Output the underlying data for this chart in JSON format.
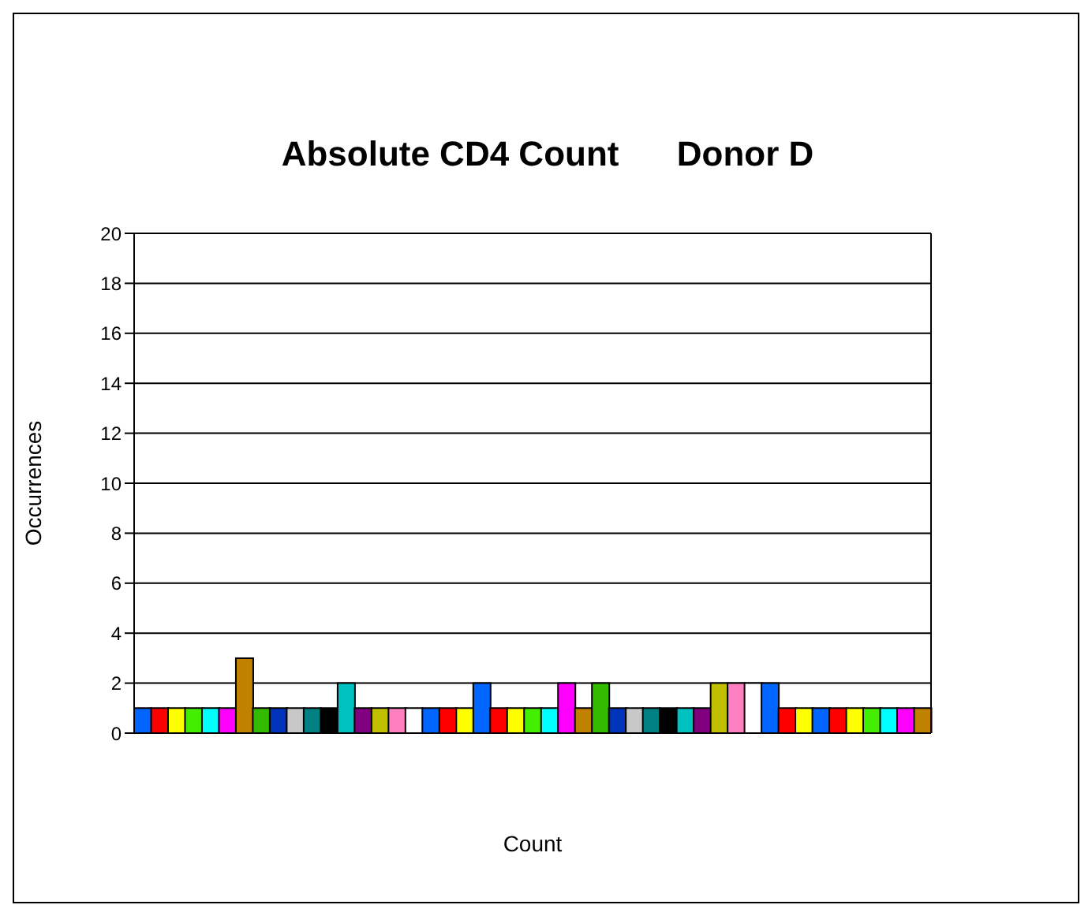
{
  "chart_data": {
    "type": "bar",
    "title": "Absolute CD4 Count      Donor D",
    "xlabel": "Count",
    "ylabel": "Occurrences",
    "categories": [
      null,
      null,
      null,
      null,
      null,
      null,
      null,
      null,
      null,
      null,
      null,
      null,
      null,
      null,
      null,
      null,
      null,
      null,
      null,
      null,
      null,
      null,
      null,
      null,
      null,
      null,
      null,
      null,
      null,
      null,
      null,
      null,
      null,
      null,
      null,
      null,
      null,
      null,
      null,
      null,
      null,
      null,
      null,
      null,
      null,
      null,
      null
    ],
    "values": [
      1,
      1,
      1,
      1,
      1,
      1,
      3,
      1,
      1,
      1,
      1,
      1,
      2,
      1,
      1,
      1,
      1,
      1,
      1,
      1,
      2,
      1,
      1,
      1,
      1,
      2,
      1,
      2,
      1,
      1,
      1,
      1,
      1,
      1,
      2,
      2,
      2,
      2,
      1,
      1,
      1,
      1,
      1,
      1,
      1,
      1,
      1
    ],
    "colors": [
      "#0066ff",
      "#ff0000",
      "#ffff00",
      "#44ee00",
      "#00ffff",
      "#ff00ff",
      "#c08000",
      "#33bb00",
      "#0033bb",
      "#c8c8c8",
      "#008080",
      "#000000",
      "#00c0c0",
      "#800080",
      "#c0c000",
      "#ff80c0",
      "#ffffff",
      "#0066ff",
      "#ff0000",
      "#ffff00",
      "#0066ff",
      "#ff0000",
      "#ffff00",
      "#44ee00",
      "#00ffff",
      "#ff00ff",
      "#c08000",
      "#33bb00",
      "#0033bb",
      "#c8c8c8",
      "#008080",
      "#000000",
      "#00c0c0",
      "#800080",
      "#c0c000",
      "#ff80c0",
      "#ffffff",
      "#0066ff",
      "#ff0000",
      "#ffff00",
      "#0066ff",
      "#ff0000",
      "#ffff00",
      "#44ee00",
      "#00ffff",
      "#ff00ff",
      "#c08000"
    ],
    "ylim": [
      0,
      20
    ],
    "yticks": [
      0,
      2,
      4,
      6,
      8,
      10,
      12,
      14,
      16,
      18,
      20
    ],
    "grid": "y"
  }
}
